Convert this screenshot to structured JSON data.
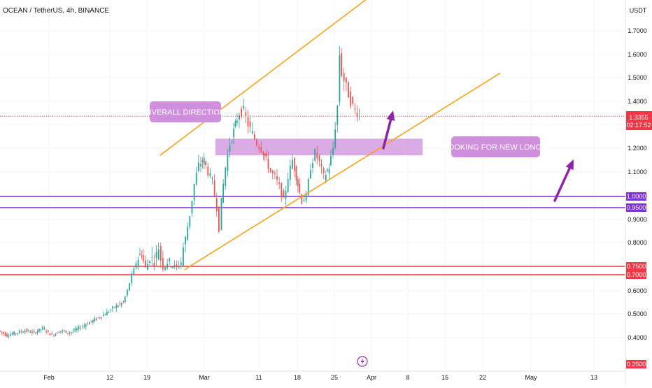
{
  "header": {
    "symbol_title": "OCEAN / TetherUS, 4h, BINANCE",
    "currency": "USDT"
  },
  "current_price": {
    "value": "1.3355",
    "countdown": "02:17:52",
    "level": 1.3355
  },
  "annotations": {
    "overall_direction": "OVERALL DIRECTION",
    "new_longs": "LOOKING FOR NEW LONGS"
  },
  "footer": {
    "icon": "lightning-bolt-icon"
  },
  "colors": {
    "up": "#26a69a",
    "down": "#ef5350",
    "channel": "#f7a21b",
    "support": "#7b2fd6",
    "resistance": "#f23645",
    "label_box": "#cf8fdc",
    "arrow": "#8e24aa"
  },
  "chart_data": {
    "type": "candlestick",
    "title": "OCEAN / TetherUS, 4h, BINANCE",
    "y_axis": {
      "unit": "USDT",
      "ticks": [
        0.4,
        0.5,
        0.6,
        0.7,
        0.8,
        0.9,
        1.0,
        1.1,
        1.2,
        1.3,
        1.4,
        1.5,
        1.6,
        1.7
      ],
      "tick_labels": [
        "0.4000",
        "0.5000",
        "0.6000",
        "0.7000",
        "0.8000",
        "0.9000",
        "1.0000",
        "1.1000",
        "1.2000",
        "1.3000",
        "1.4000",
        "1.5000",
        "1.6000",
        "1.7000"
      ]
    },
    "x_axis": {
      "tick_labels": [
        "Feb",
        "12",
        "19",
        "Mar",
        "11",
        "18",
        "25",
        "Apr",
        "8",
        "15",
        "22",
        "May",
        "13"
      ]
    },
    "horizontal_levels": [
      {
        "value": 1.0,
        "label": "1.0000",
        "color": "#7b2fd6"
      },
      {
        "value": 0.95,
        "label": "0.9500",
        "color": "#7b2fd6"
      },
      {
        "value": 0.75,
        "label": "0.7500",
        "color": "#f23645"
      },
      {
        "value": 0.7,
        "label": "0.7000",
        "color": "#f23645"
      }
    ],
    "extra_price_labels": [
      {
        "value": 0.75,
        "label": "0.7500"
      },
      {
        "value": 0.7,
        "label": "0.7000"
      },
      {
        "value": 0.25,
        "label": "0.2500"
      }
    ],
    "channel": {
      "upper": [
        [
          0.256,
          1.17
        ],
        [
          0.66,
          1.98
        ]
      ],
      "lower": [
        [
          0.295,
          0.73
        ],
        [
          0.8,
          1.52
        ]
      ]
    },
    "supply_zone": {
      "y_top": 1.24,
      "y_bottom": 1.17
    },
    "price_path": [
      [
        0,
        0.43
      ],
      [
        0.014,
        0.41
      ],
      [
        0.028,
        0.42
      ],
      [
        0.043,
        0.43
      ],
      [
        0.057,
        0.42
      ],
      [
        0.071,
        0.44
      ],
      [
        0.086,
        0.41
      ],
      [
        0.1,
        0.43
      ],
      [
        0.114,
        0.42
      ],
      [
        0.129,
        0.44
      ],
      [
        0.143,
        0.46
      ],
      [
        0.157,
        0.48
      ],
      [
        0.171,
        0.5
      ],
      [
        0.186,
        0.53
      ],
      [
        0.2,
        0.55
      ],
      [
        0.207,
        0.6
      ],
      [
        0.214,
        0.7
      ],
      [
        0.221,
        0.76
      ],
      [
        0.229,
        0.78
      ],
      [
        0.236,
        0.74
      ],
      [
        0.243,
        0.77
      ],
      [
        0.25,
        0.76
      ],
      [
        0.257,
        0.79
      ],
      [
        0.264,
        0.74
      ],
      [
        0.271,
        0.76
      ],
      [
        0.279,
        0.75
      ],
      [
        0.286,
        0.74
      ],
      [
        0.293,
        0.76
      ],
      [
        0.3,
        0.82
      ],
      [
        0.307,
        0.92
      ],
      [
        0.314,
        1.05
      ],
      [
        0.321,
        1.13
      ],
      [
        0.329,
        1.15
      ],
      [
        0.336,
        1.1
      ],
      [
        0.343,
        1.06
      ],
      [
        0.35,
        0.95
      ],
      [
        0.354,
        0.86
      ],
      [
        0.357,
        0.98
      ],
      [
        0.364,
        1.12
      ],
      [
        0.371,
        1.22
      ],
      [
        0.379,
        1.3
      ],
      [
        0.386,
        1.35
      ],
      [
        0.393,
        1.36
      ],
      [
        0.4,
        1.3
      ],
      [
        0.407,
        1.26
      ],
      [
        0.414,
        1.22
      ],
      [
        0.421,
        1.2
      ],
      [
        0.429,
        1.15
      ],
      [
        0.436,
        1.1
      ],
      [
        0.443,
        1.08
      ],
      [
        0.45,
        1.04
      ],
      [
        0.457,
        0.98
      ],
      [
        0.464,
        1.08
      ],
      [
        0.471,
        1.15
      ],
      [
        0.479,
        1.05
      ],
      [
        0.486,
        0.98
      ],
      [
        0.493,
        1.0
      ],
      [
        0.5,
        1.12
      ],
      [
        0.507,
        1.18
      ],
      [
        0.514,
        1.14
      ],
      [
        0.521,
        1.08
      ],
      [
        0.529,
        1.12
      ],
      [
        0.536,
        1.2
      ],
      [
        0.543,
        1.38
      ],
      [
        0.546,
        1.6
      ],
      [
        0.55,
        1.52
      ],
      [
        0.557,
        1.46
      ],
      [
        0.564,
        1.4
      ],
      [
        0.571,
        1.36
      ],
      [
        0.578,
        1.34
      ]
    ]
  }
}
